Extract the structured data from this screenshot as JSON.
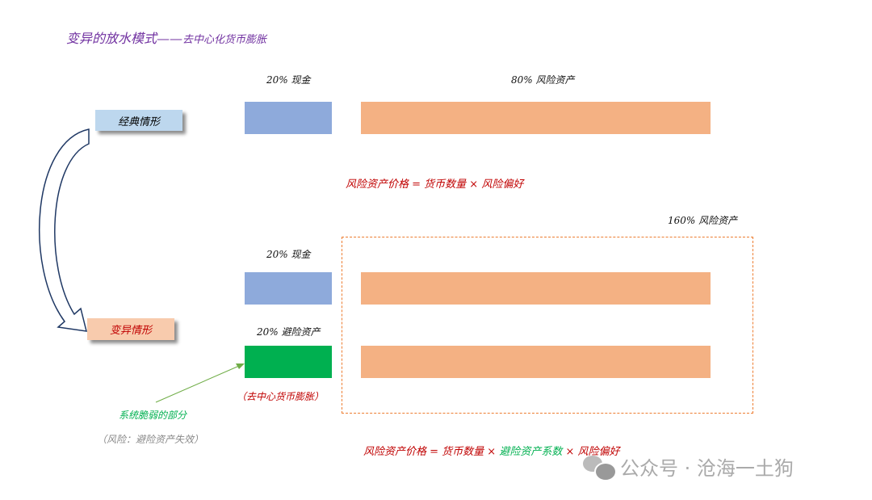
{
  "title": {
    "main": "变异的放水模式——",
    "sub": "去中心化货币膨胀"
  },
  "classic": {
    "label": "经典情形",
    "cash_label": "20% 现金",
    "risk_label": "80%  风险资产",
    "formula": "风险资产价格 = 货币数量 × 风险偏好"
  },
  "variant": {
    "label": "变异情形",
    "risk_total_label": "160%  风险资产",
    "cash_label": "20% 现金",
    "safe_label": "20% 避险资产",
    "safe_note": "（去中心货币膨胀）",
    "fragile_label": "系统脆弱的部分",
    "fragile_note": "（风险：避险资产失效）",
    "formula": {
      "part1": "风险资产价格 = 货币数量 × ",
      "part2": "避险资产系数",
      "part3": " × 风险偏好"
    }
  },
  "watermark": "公众号 · 沧海一土狗",
  "colors": {
    "title": "#7030a0",
    "cash": "#8eaadb",
    "risk": "#f4b183",
    "safe": "#00b050",
    "formula": "#c00000",
    "classic_label_bg": "#bdd7ee",
    "variant_label_bg": "#f8cbad",
    "dashed": "#ed7d31"
  }
}
